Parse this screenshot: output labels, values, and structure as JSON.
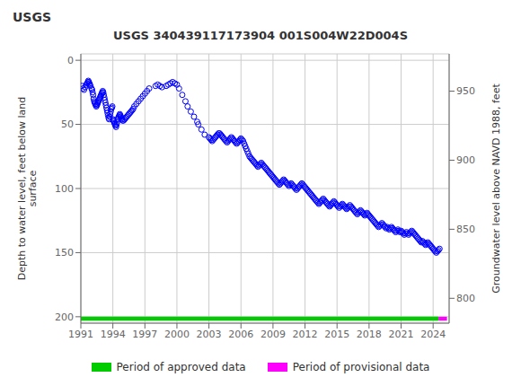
{
  "chart_data": {
    "type": "scatter",
    "title": "USGS 340439117173904 001S004W22D004S",
    "annotations": [
      "USGS"
    ],
    "y_label": "Depth to water level, feet below land\nsurface",
    "y2_label": "Groundwater level above NAVD 1988, feet",
    "xlim": [
      1991,
      2025.5
    ],
    "xticks": [
      1991,
      1994,
      1997,
      2000,
      2003,
      2006,
      2009,
      2012,
      2015,
      2018,
      2021,
      2024
    ],
    "ylim": [
      205,
      -5
    ],
    "yticks": [
      0,
      50,
      100,
      150,
      200
    ],
    "y2lim": [
      782,
      977
    ],
    "y2ticks": [
      800,
      850,
      900,
      950
    ],
    "grid": true,
    "legend": "bottom",
    "series": [
      {
        "color": "#0000ff",
        "marker": "circle",
        "x": [
          1991.1,
          1991.2,
          1991.3,
          1991.4,
          1991.5,
          1991.6,
          1991.65,
          1991.7,
          1991.75,
          1991.8,
          1991.85,
          1991.9,
          1992.0,
          1992.05,
          1992.1,
          1992.15,
          1992.2,
          1992.25,
          1992.3,
          1992.35,
          1992.4,
          1992.45,
          1992.5,
          1992.55,
          1992.6,
          1992.65,
          1992.7,
          1992.75,
          1992.8,
          1992.85,
          1992.9,
          1992.95,
          1993.0,
          1993.05,
          1993.1,
          1993.15,
          1993.2,
          1993.25,
          1993.3,
          1993.35,
          1993.4,
          1993.45,
          1993.5,
          1993.55,
          1993.6,
          1993.65,
          1993.7,
          1993.75,
          1993.8,
          1993.85,
          1993.9,
          1993.95,
          1994.0,
          1994.05,
          1994.1,
          1994.15,
          1994.2,
          1994.25,
          1994.3,
          1994.35,
          1994.4,
          1994.45,
          1994.5,
          1994.55,
          1994.6,
          1994.65,
          1994.7,
          1994.75,
          1994.8,
          1994.85,
          1994.9,
          1995.0,
          1995.1,
          1995.2,
          1995.3,
          1995.4,
          1995.5,
          1995.6,
          1995.7,
          1995.8,
          1995.9,
          1996.0,
          1996.2,
          1996.4,
          1996.6,
          1996.8,
          1997.0,
          1997.2,
          1997.4,
          1998.0,
          1998.2,
          1998.4,
          1998.6,
          1999.0,
          1999.2,
          1999.4,
          1999.6,
          1999.8,
          2000.0,
          2000.2,
          2000.5,
          2000.8,
          2001.0,
          2001.3,
          2001.6,
          2001.9,
          2002.0,
          2002.3,
          2002.6,
          2003.0,
          2003.1,
          2003.2,
          2003.3,
          2003.4,
          2003.5,
          2003.6,
          2003.7,
          2003.8,
          2003.9,
          2004.0,
          2004.1,
          2004.2,
          2004.3,
          2004.4,
          2004.5,
          2004.6,
          2004.7,
          2004.8,
          2004.9,
          2005.0,
          2005.1,
          2005.2,
          2005.3,
          2005.4,
          2005.5,
          2005.6,
          2005.7,
          2005.8,
          2005.9,
          2006.0,
          2006.1,
          2006.2,
          2006.3,
          2006.4,
          2006.5,
          2006.6,
          2006.7,
          2006.8,
          2006.9,
          2007.0,
          2007.1,
          2007.2,
          2007.3,
          2007.4,
          2007.5,
          2007.6,
          2007.7,
          2007.8,
          2007.9,
          2008.0,
          2008.1,
          2008.2,
          2008.3,
          2008.4,
          2008.5,
          2008.6,
          2008.7,
          2008.8,
          2008.9,
          2009.0,
          2009.1,
          2009.2,
          2009.3,
          2009.4,
          2009.5,
          2009.6,
          2009.7,
          2009.8,
          2009.9,
          2010.0,
          2010.1,
          2010.2,
          2010.3,
          2010.4,
          2010.5,
          2010.6,
          2010.7,
          2010.8,
          2010.9,
          2011.0,
          2011.1,
          2011.2,
          2011.3,
          2011.4,
          2011.5,
          2011.6,
          2011.7,
          2011.8,
          2011.9,
          2012.0,
          2012.1,
          2012.2,
          2012.3,
          2012.4,
          2012.5,
          2012.6,
          2012.7,
          2012.8,
          2012.9,
          2013.0,
          2013.1,
          2013.2,
          2013.3,
          2013.4,
          2013.5,
          2013.6,
          2013.7,
          2013.8,
          2013.9,
          2014.0,
          2014.1,
          2014.2,
          2014.3,
          2014.4,
          2014.5,
          2014.6,
          2014.7,
          2014.8,
          2014.9,
          2015.0,
          2015.1,
          2015.2,
          2015.3,
          2015.4,
          2015.5,
          2015.6,
          2015.7,
          2015.8,
          2015.9,
          2016.0,
          2016.1,
          2016.2,
          2016.3,
          2016.4,
          2016.5,
          2016.6,
          2016.7,
          2016.8,
          2016.9,
          2017.0,
          2017.1,
          2017.2,
          2017.3,
          2017.4,
          2017.5,
          2017.6,
          2017.7,
          2017.8,
          2017.9,
          2018.0,
          2018.1,
          2018.2,
          2018.3,
          2018.4,
          2018.5,
          2018.6,
          2018.7,
          2018.8,
          2018.9,
          2019.0,
          2019.1,
          2019.2,
          2019.3,
          2019.4,
          2019.5,
          2019.6,
          2019.7,
          2019.8,
          2019.9,
          2020.0,
          2020.1,
          2020.2,
          2020.3,
          2020.4,
          2020.5,
          2020.6,
          2020.7,
          2020.8,
          2020.9,
          2021.0,
          2021.1,
          2021.2,
          2021.3,
          2021.4,
          2021.5,
          2021.6,
          2021.7,
          2021.8,
          2021.9,
          2022.0,
          2022.1,
          2022.2,
          2022.3,
          2022.4,
          2022.5,
          2022.6,
          2022.7,
          2022.8,
          2022.9,
          2023.0,
          2023.1,
          2023.2,
          2023.3,
          2023.4,
          2023.5,
          2023.6,
          2023.7,
          2023.8,
          2023.9,
          2024.0,
          2024.1,
          2024.2,
          2024.3,
          2024.4,
          2024.5,
          2024.6
        ],
        "values": [
          20,
          22,
          23,
          21,
          19,
          18,
          17,
          16,
          17,
          18,
          19,
          20,
          22,
          23,
          25,
          27,
          30,
          32,
          33,
          34,
          35,
          36,
          35,
          34,
          33,
          32,
          31,
          30,
          29,
          28,
          27,
          26,
          25,
          24,
          25,
          27,
          29,
          31,
          33,
          35,
          37,
          39,
          41,
          43,
          45,
          46,
          44,
          42,
          40,
          38,
          37,
          36,
          46,
          47,
          48,
          49,
          50,
          51,
          52,
          50,
          48,
          46,
          45,
          44,
          43,
          42,
          43,
          44,
          45,
          46,
          47,
          47,
          46,
          45,
          44,
          43,
          42,
          41,
          40,
          39,
          38,
          36,
          34,
          32,
          30,
          28,
          26,
          24,
          22,
          20,
          19,
          20,
          21,
          20,
          19,
          18,
          17,
          18,
          19,
          22,
          27,
          32,
          36,
          40,
          44,
          48,
          50,
          54,
          58,
          60,
          61,
          62,
          63,
          62,
          61,
          60,
          59,
          58,
          57,
          57,
          58,
          59,
          60,
          61,
          62,
          63,
          64,
          63,
          62,
          61,
          60,
          61,
          62,
          63,
          64,
          65,
          64,
          63,
          62,
          61,
          62,
          63,
          65,
          67,
          69,
          71,
          73,
          75,
          76,
          77,
          78,
          79,
          80,
          81,
          82,
          83,
          82,
          81,
          80,
          81,
          82,
          83,
          84,
          85,
          86,
          87,
          88,
          89,
          90,
          91,
          92,
          93,
          94,
          95,
          96,
          97,
          96,
          95,
          94,
          93,
          94,
          95,
          96,
          97,
          98,
          97,
          96,
          97,
          98,
          99,
          100,
          101,
          100,
          99,
          98,
          97,
          96,
          97,
          98,
          99,
          100,
          101,
          102,
          103,
          104,
          105,
          106,
          107,
          108,
          109,
          110,
          111,
          112,
          111,
          110,
          109,
          108,
          109,
          110,
          111,
          112,
          113,
          114,
          113,
          112,
          111,
          110,
          111,
          112,
          113,
          114,
          115,
          114,
          113,
          112,
          113,
          114,
          115,
          116,
          115,
          114,
          113,
          114,
          115,
          116,
          117,
          118,
          119,
          120,
          119,
          118,
          117,
          118,
          119,
          120,
          121,
          120,
          119,
          120,
          121,
          122,
          123,
          124,
          125,
          126,
          127,
          128,
          129,
          130,
          129,
          128,
          127,
          128,
          129,
          130,
          131,
          130,
          131,
          132,
          131,
          130,
          131,
          132,
          133,
          134,
          133,
          132,
          133,
          134,
          133,
          134,
          135,
          136,
          135,
          134,
          135,
          136,
          135,
          134,
          133,
          134,
          135,
          136,
          137,
          138,
          139,
          140,
          141,
          142,
          141,
          142,
          143,
          144,
          143,
          142,
          143,
          144,
          145,
          146,
          147,
          148,
          149,
          150,
          149,
          148,
          147
        ]
      }
    ],
    "periods": [
      {
        "name": "Period of approved data",
        "color": "#00cc00",
        "x_range": [
          1991.0,
          2024.5
        ],
        "y_range": [
          200.0,
          203.0
        ]
      },
      {
        "name": "Period of provisional data",
        "color": "#ff00ff",
        "x_range": [
          2024.5,
          2025.3
        ],
        "y_range": [
          200.0,
          203.0
        ]
      }
    ]
  }
}
